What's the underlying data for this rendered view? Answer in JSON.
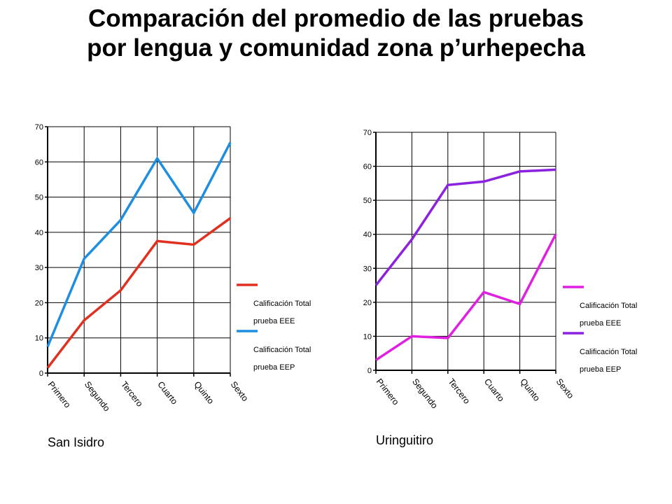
{
  "title": {
    "line1": "Comparación del promedio de las pruebas",
    "line2": "por lengua y comunidad zona p’urhepecha"
  },
  "chart_data": [
    {
      "type": "line",
      "subtitle": "San Isidro",
      "categories": [
        "Primero",
        "Segundo",
        "Tercero",
        "Cuarto",
        "Quinto",
        "Sexto"
      ],
      "ylim": [
        0,
        70
      ],
      "yticks": [
        0,
        10,
        20,
        30,
        40,
        50,
        60,
        70
      ],
      "grid": true,
      "legend_position": "right",
      "series": [
        {
          "name": "Calificación Total prueba EEE",
          "legend_lines": [
            "Calificación Total",
            "prueba EEE"
          ],
          "color": "#e03020",
          "values": [
            1.5,
            15,
            23.5,
            37.5,
            36.5,
            44
          ]
        },
        {
          "name": "Calificación Total prueba EEP",
          "legend_lines": [
            "Calificación Total",
            "prueba EEP"
          ],
          "color": "#1e8ee0",
          "values": [
            7.5,
            32.5,
            43.5,
            61,
            45.5,
            65.5
          ]
        }
      ]
    },
    {
      "type": "line",
      "subtitle": "Uringuitiro",
      "categories": [
        "Primero",
        "Segundo",
        "Tercero",
        "Cuarto",
        "Quinto",
        "Sexto"
      ],
      "ylim": [
        0,
        70
      ],
      "yticks": [
        0,
        10,
        20,
        30,
        40,
        50,
        60,
        70
      ],
      "grid": true,
      "legend_position": "right",
      "series": [
        {
          "name": "Calificación Total prueba EEE",
          "legend_lines": [
            "Calificación Total",
            "prueba EEE"
          ],
          "color": "#e020e0",
          "values": [
            3,
            10,
            9.5,
            23,
            19.5,
            40
          ]
        },
        {
          "name": "Calificación Total prueba EEP",
          "legend_lines": [
            "Calificación Total",
            "prueba EEP"
          ],
          "color": "#8a22e0",
          "values": [
            25,
            38.5,
            54.5,
            55.5,
            58.5,
            59
          ]
        }
      ]
    }
  ]
}
